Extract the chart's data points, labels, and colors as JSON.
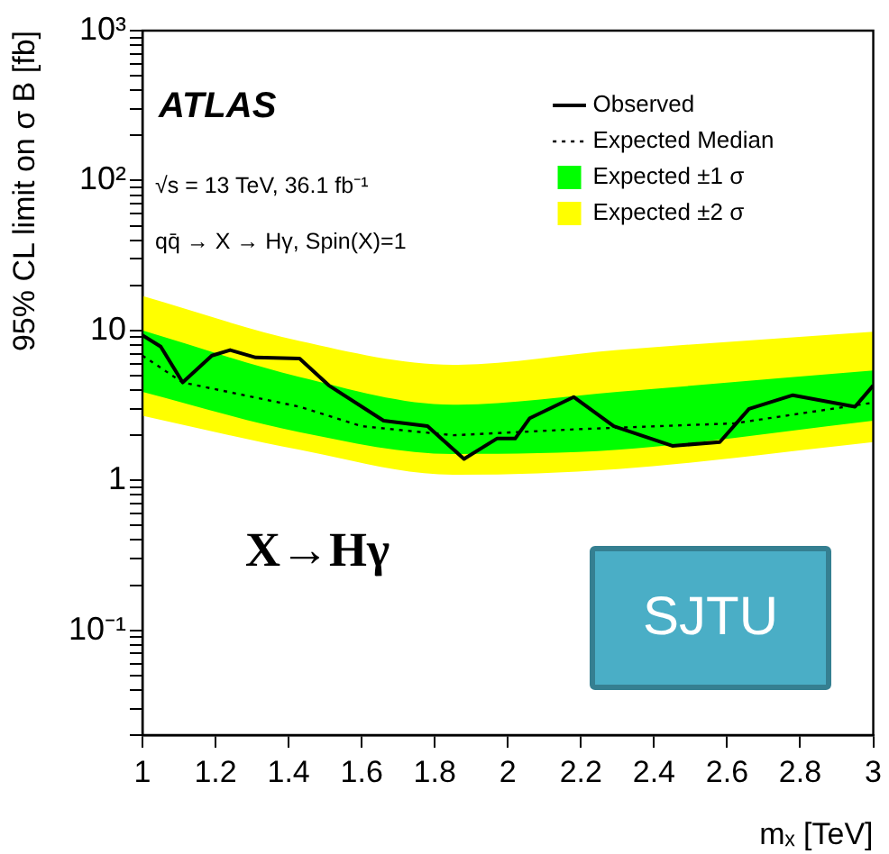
{
  "chart_data": {
    "type": "line",
    "xlabel": "mₓ [TeV]",
    "ylabel": "95% CL limit on σ B [fb]",
    "log": "y",
    "grid": false,
    "legend": "top right",
    "xlim": [
      1,
      3
    ],
    "xticks": [
      1,
      1.2,
      1.4,
      1.6,
      1.8,
      2,
      2.2,
      2.4,
      2.6,
      2.8,
      3
    ],
    "ylim": [
      0.02,
      1000
    ],
    "yticks": [
      {
        "value": 0.02,
        "label": null
      },
      {
        "value": 0.03,
        "label": null
      },
      {
        "value": 0.04,
        "label": null
      },
      {
        "value": 0.05,
        "label": null
      },
      {
        "value": 0.06,
        "label": null
      },
      {
        "value": 0.07,
        "label": null
      },
      {
        "value": 0.08,
        "label": null
      },
      {
        "value": 0.09,
        "label": null
      },
      {
        "value": 0.1,
        "label": "10⁻¹"
      },
      {
        "value": 0.2,
        "label": null
      },
      {
        "value": 0.3,
        "label": null
      },
      {
        "value": 0.4,
        "label": null
      },
      {
        "value": 0.5,
        "label": null
      },
      {
        "value": 0.6,
        "label": null
      },
      {
        "value": 0.7,
        "label": null
      },
      {
        "value": 0.8,
        "label": null
      },
      {
        "value": 0.9,
        "label": null
      },
      1,
      {
        "value": 2,
        "label": null
      },
      {
        "value": 3,
        "label": null
      },
      {
        "value": 4,
        "label": null
      },
      {
        "value": 5,
        "label": null
      },
      {
        "value": 6,
        "label": null
      },
      {
        "value": 7,
        "label": null
      },
      {
        "value": 8,
        "label": null
      },
      {
        "value": 9,
        "label": null
      },
      10,
      {
        "value": 20,
        "label": null
      },
      {
        "value": 30,
        "label": null
      },
      {
        "value": 40,
        "label": null
      },
      {
        "value": 50,
        "label": null
      },
      {
        "value": 60,
        "label": null
      },
      {
        "value": 70,
        "label": null
      },
      {
        "value": 80,
        "label": null
      },
      {
        "value": 90,
        "label": null
      },
      {
        "value": 100,
        "label": "10²"
      },
      {
        "value": 200,
        "label": null
      },
      {
        "value": 300,
        "label": null
      },
      {
        "value": 400,
        "label": null
      },
      {
        "value": 500,
        "label": null
      },
      {
        "value": 600,
        "label": null
      },
      {
        "value": 700,
        "label": null
      },
      {
        "value": 800,
        "label": null
      },
      {
        "value": 900,
        "label": null
      },
      {
        "value": 1000,
        "label": "10³"
      }
    ],
    "series": [
      {
        "name": "Observed",
        "color": "#000000",
        "line_style": "solid",
        "x": [
          1,
          1.05,
          1.11,
          1.19,
          1.24,
          1.31,
          1.43,
          1.51,
          1.66,
          1.78,
          1.88,
          1.97,
          2.02,
          2.06,
          2.18,
          2.29,
          2.45,
          2.58,
          2.66,
          2.78,
          2.95,
          3
        ],
        "values": [
          9.3,
          7.8,
          4.5,
          6.8,
          7.4,
          6.6,
          6.5,
          4.3,
          2.5,
          2.3,
          1.39,
          1.9,
          1.9,
          2.6,
          3.6,
          2.3,
          1.7,
          1.8,
          3,
          3.7,
          3.1,
          4.3
        ]
      },
      {
        "name": "Expected Median",
        "color": "#000000",
        "line_style": "dotted",
        "x": [
          1,
          1.11,
          1.43,
          1.6,
          1.85,
          2.2,
          2.62,
          3
        ],
        "values": [
          6.8,
          4.5,
          3.1,
          2.3,
          2,
          2.2,
          2.4,
          3.3
        ]
      },
      {
        "name": "Expected ±1 σ",
        "color": "#00ff00",
        "x": [
          1,
          1.43,
          1.85,
          2.3,
          3
        ],
        "values": [
          null,
          null,
          null,
          null,
          null
        ],
        "lower": [
          3.9,
          2.1,
          1.5,
          1.6,
          2.5
        ],
        "upper": [
          10,
          4.9,
          3.2,
          3.9,
          5.4
        ]
      },
      {
        "name": "Expected ±2 σ",
        "color": "#ffff00",
        "x": [
          1,
          1.43,
          1.85,
          2.3,
          3
        ],
        "values": [
          null,
          null,
          null,
          null,
          null
        ],
        "lower": [
          2.7,
          1.6,
          1.09,
          1.19,
          1.8
        ],
        "upper": [
          17,
          8.5,
          5.9,
          7.4,
          9.8
        ]
      }
    ],
    "annotations": [
      "ATLAS",
      "√s = 13 TeV, 36.1 fb⁻¹",
      "qq̄ → X → Hγ, Spin(X)=1",
      "X→Hγ",
      "SJTU"
    ]
  }
}
